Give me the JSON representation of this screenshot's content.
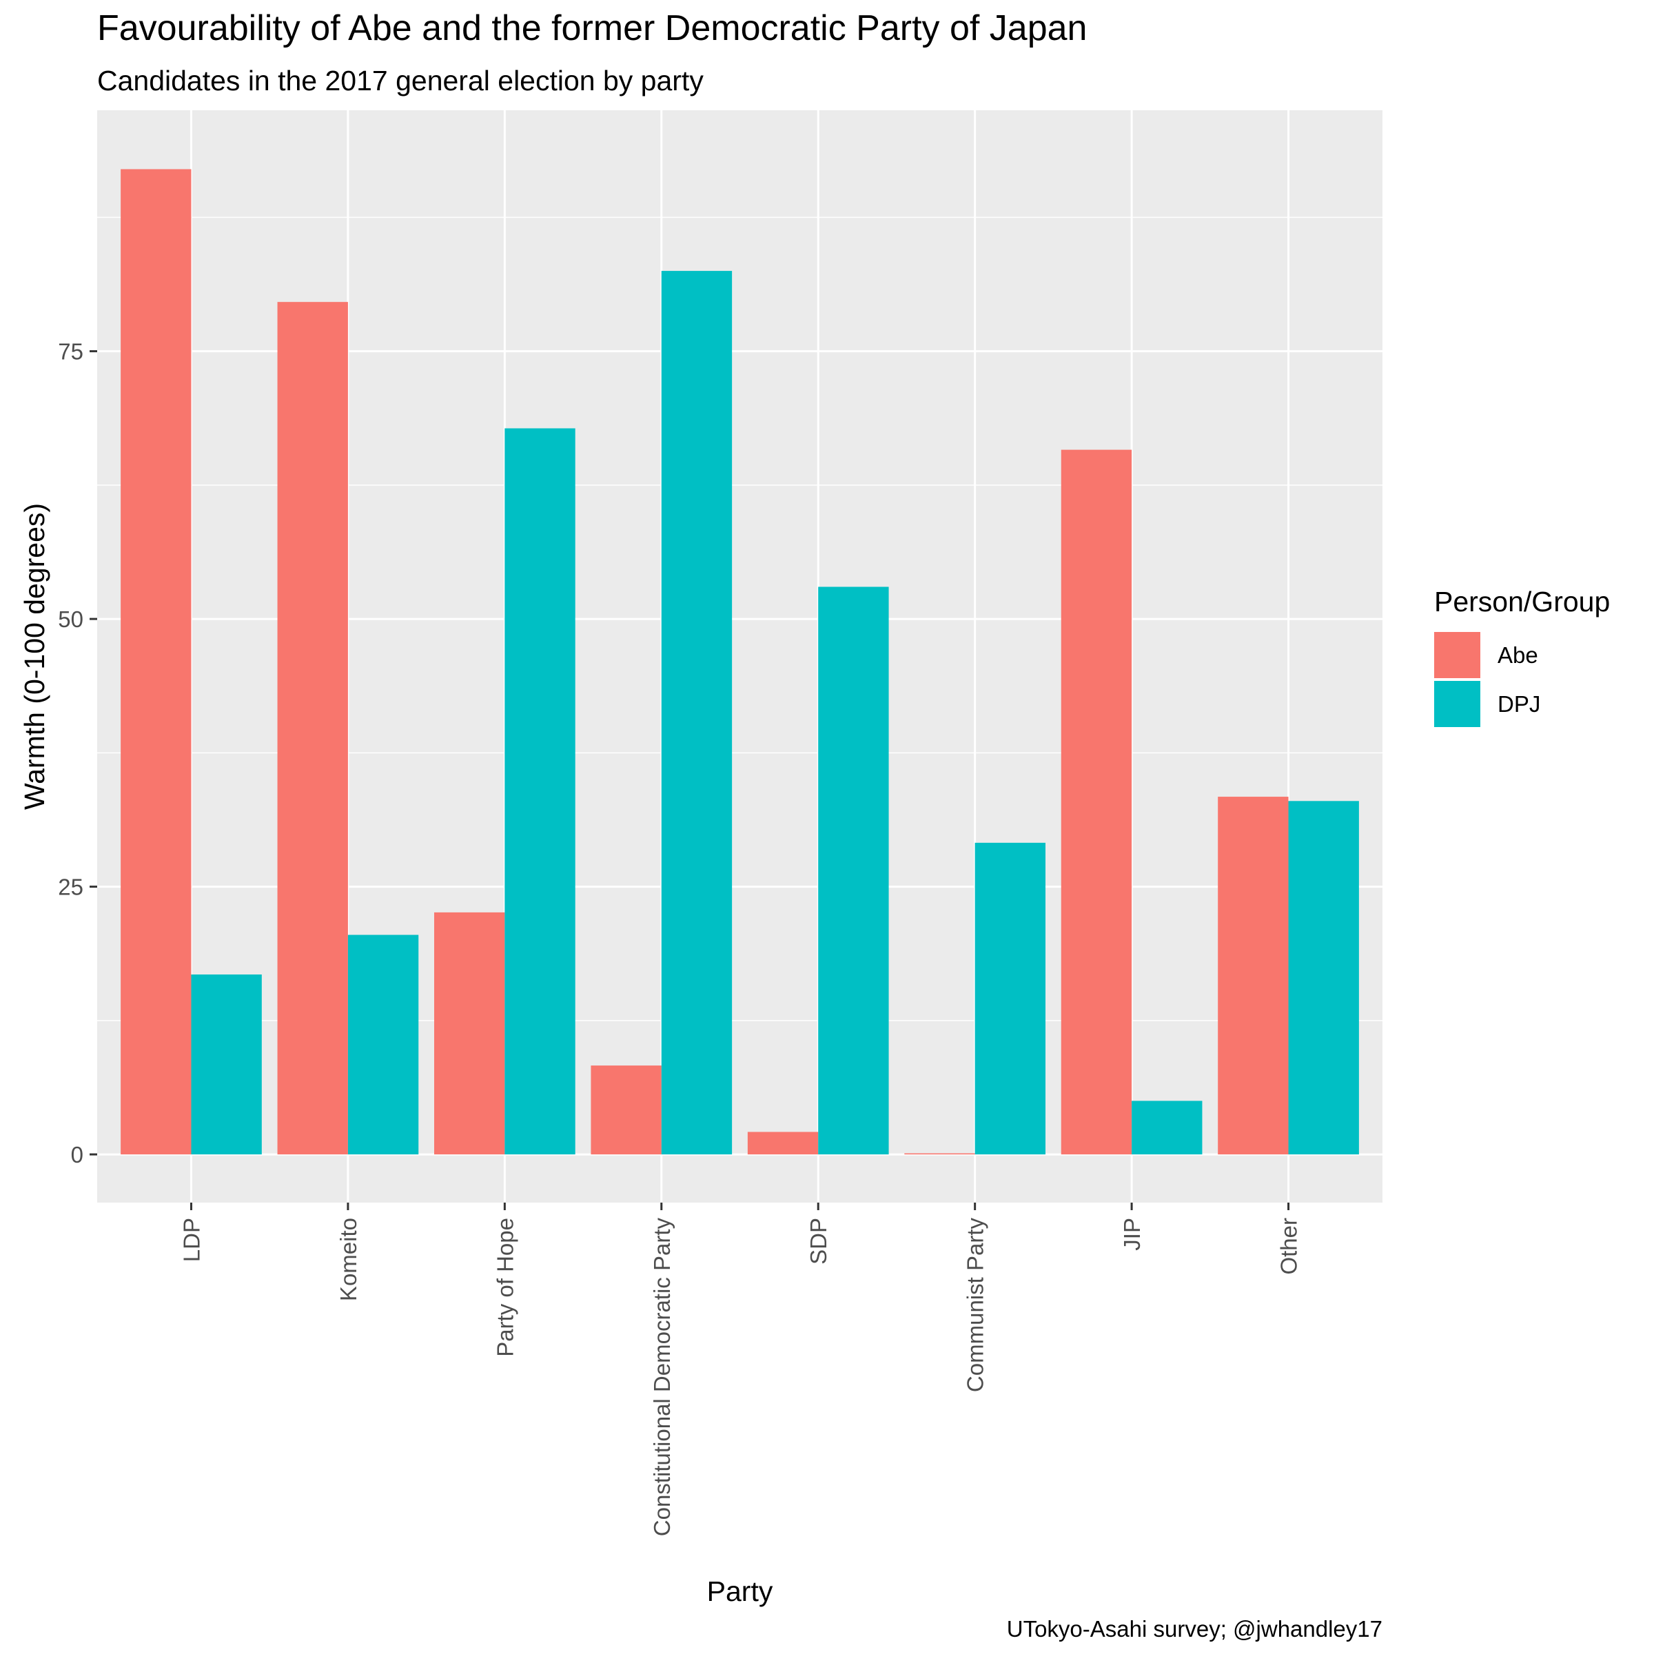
{
  "chart_data": {
    "type": "bar",
    "title": "Favourability of Abe and the former Democratic Party of Japan",
    "subtitle": "Candidates in the 2017 general election by party",
    "xlabel": "Party",
    "ylabel": "Warmth (0-100 degrees)",
    "caption": "UTokyo-Asahi survey; @jwhandley17",
    "categories": [
      "LDP",
      "Komeito",
      "Party of Hope",
      "Constitutional Democratic Party",
      "SDP",
      "Communist Party",
      "JIP",
      "Other"
    ],
    "series": [
      {
        "name": "Abe",
        "color": "#F8766D",
        "values": [
          92.0,
          79.6,
          22.6,
          8.3,
          2.1,
          0.1,
          65.8,
          33.4
        ]
      },
      {
        "name": "DPJ",
        "color": "#00BFC4",
        "values": [
          16.8,
          20.5,
          67.8,
          82.5,
          53.0,
          29.1,
          5.0,
          33.0
        ]
      }
    ],
    "ylim": [
      -4.5,
      97.5
    ],
    "yticks": [
      0,
      25,
      50,
      75
    ],
    "grid": true,
    "legend": {
      "title": "Person/Group",
      "position": "right"
    },
    "panel_background": "#EBEBEB",
    "grid_color": "#FFFFFF"
  }
}
